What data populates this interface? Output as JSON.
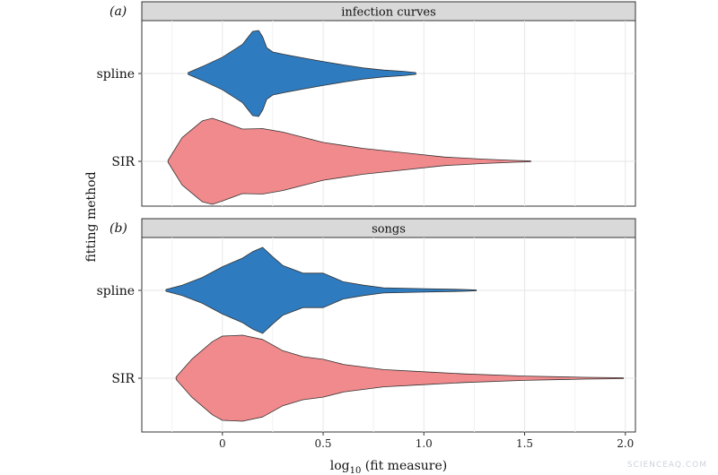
{
  "watermark": "SCIENCEAQ.COM",
  "chart_data": {
    "type": "violin",
    "xlabel": "log",
    "xlabel_sub": "10",
    "xlabel_rest": " (fit measure)",
    "ylabel": "fitting method",
    "xlim": [
      -0.4,
      2.05
    ],
    "xticks": [
      0,
      0.5,
      1,
      1.5,
      2
    ],
    "xtick_labels": [
      "0",
      "0.5",
      "1.0",
      "1.5",
      "2.0"
    ],
    "categories": [
      "spline",
      "SIR"
    ],
    "colors": {
      "spline": "#2f7bbf",
      "SIR": "#f08a8c",
      "outline": "#333333",
      "strip": "#d9d9d9"
    },
    "panels": [
      {
        "label": "(a)",
        "title": "infection curves",
        "series": [
          {
            "name": "spline",
            "x": [
              -0.17,
              -0.1,
              0,
              0.1,
              0.15,
              0.18,
              0.2,
              0.22,
              0.25,
              0.3,
              0.4,
              0.5,
              0.6,
              0.7,
              0.8,
              0.9,
              0.96
            ],
            "density": [
              0.02,
              0.16,
              0.38,
              0.68,
              0.98,
              1.0,
              0.85,
              0.6,
              0.5,
              0.45,
              0.36,
              0.28,
              0.2,
              0.13,
              0.08,
              0.05,
              0.02
            ]
          },
          {
            "name": "SIR",
            "x": [
              -0.27,
              -0.2,
              -0.1,
              -0.05,
              0,
              0.1,
              0.2,
              0.3,
              0.5,
              0.7,
              0.9,
              1.1,
              1.3,
              1.45,
              1.53
            ],
            "density": [
              0.02,
              0.55,
              0.94,
              1.0,
              0.92,
              0.75,
              0.76,
              0.68,
              0.44,
              0.3,
              0.2,
              0.1,
              0.05,
              0.02,
              0.01
            ]
          }
        ]
      },
      {
        "label": "(b)",
        "title": "songs",
        "series": [
          {
            "name": "spline",
            "x": [
              -0.28,
              -0.2,
              -0.1,
              0,
              0.1,
              0.15,
              0.2,
              0.25,
              0.3,
              0.4,
              0.5,
              0.6,
              0.7,
              0.8,
              1.0,
              1.2,
              1.26
            ],
            "density": [
              0.02,
              0.12,
              0.3,
              0.55,
              0.75,
              0.9,
              1.0,
              0.78,
              0.58,
              0.4,
              0.4,
              0.2,
              0.12,
              0.06,
              0.04,
              0.02,
              0.01
            ]
          },
          {
            "name": "SIR",
            "x": [
              -0.23,
              -0.15,
              -0.05,
              0,
              0.1,
              0.2,
              0.3,
              0.4,
              0.5,
              0.6,
              0.8,
              1.0,
              1.2,
              1.5,
              1.8,
              1.99
            ],
            "density": [
              0.03,
              0.45,
              0.85,
              0.98,
              1.0,
              0.9,
              0.64,
              0.5,
              0.44,
              0.32,
              0.2,
              0.15,
              0.1,
              0.05,
              0.02,
              0.01
            ]
          }
        ]
      }
    ]
  }
}
